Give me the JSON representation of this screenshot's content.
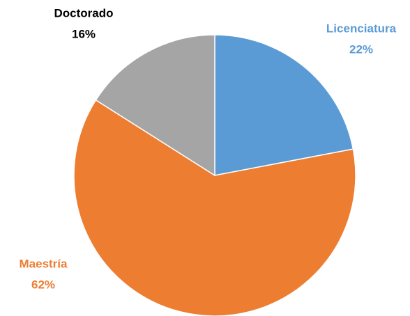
{
  "chart_data": {
    "type": "pie",
    "categories": [
      "Licenciatura",
      "Maestría",
      "Doctorado"
    ],
    "values": [
      22,
      62,
      16
    ],
    "value_labels": [
      "22%",
      "62%",
      "16%"
    ],
    "colors": [
      "#5b9bd5",
      "#ed7d31",
      "#a5a5a5"
    ],
    "label_colors": [
      "#5b9bd5",
      "#ed7d31",
      "#000000"
    ]
  }
}
